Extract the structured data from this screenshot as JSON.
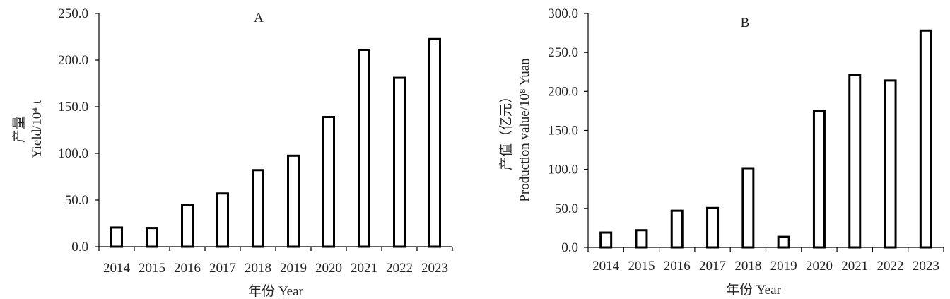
{
  "figure": {
    "colors": {
      "bar_fill": "#ffffff",
      "bar_stroke": "#000000",
      "axis": "#000000",
      "text": "#222222"
    }
  },
  "chart_data": [
    {
      "type": "bar",
      "title": "A",
      "xlabel": "年份 Year",
      "ylabel_cn": "产量",
      "ylabel_en": "Yield/10⁴ t",
      "categories": [
        "2014",
        "2015",
        "2016",
        "2017",
        "2018",
        "2019",
        "2020",
        "2021",
        "2022",
        "2023"
      ],
      "values": [
        20.5,
        20.0,
        45.0,
        57.0,
        82.0,
        97.5,
        139.0,
        211.0,
        181.0,
        222.5
      ],
      "ylim": [
        0,
        250
      ],
      "yticks": [
        0,
        50,
        100,
        150,
        200,
        250
      ],
      "ytick_labels": [
        "0.0",
        "50.0",
        "100.0",
        "150.0",
        "200.0",
        "250.0"
      ],
      "grid": false,
      "legend": "none"
    },
    {
      "type": "bar",
      "title": "B",
      "xlabel": "年份 Year",
      "ylabel_cn": "产值（亿元）",
      "ylabel_en": "Production value/10⁸ Yuan",
      "categories": [
        "2014",
        "2015",
        "2016",
        "2017",
        "2018",
        "2019",
        "2020",
        "2021",
        "2022",
        "2023"
      ],
      "values": [
        19.0,
        22.0,
        47.0,
        50.5,
        101.5,
        13.5,
        175.0,
        221.0,
        214.0,
        278.0
      ],
      "ylim": [
        0,
        300
      ],
      "yticks": [
        0,
        50,
        100,
        150,
        200,
        250,
        300
      ],
      "ytick_labels": [
        "0.0",
        "50.0",
        "100.0",
        "150.0",
        "200.0",
        "250.0",
        "300.0"
      ],
      "grid": false,
      "legend": "none"
    }
  ]
}
